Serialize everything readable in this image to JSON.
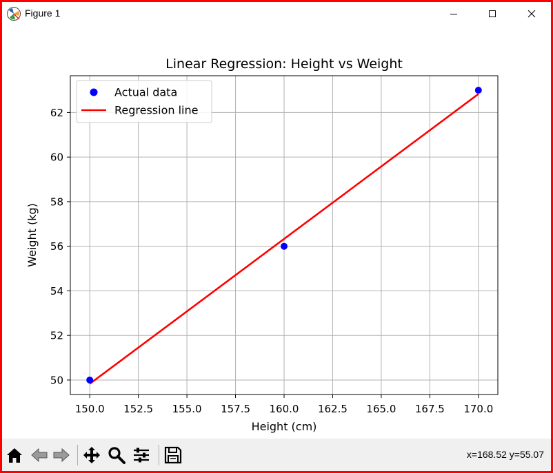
{
  "window": {
    "title": "Figure 1"
  },
  "status": {
    "coords": "x=168.52 y=55.07"
  },
  "toolbar": {
    "items": [
      {
        "icon": "home-icon"
      },
      {
        "icon": "back-arrow-icon"
      },
      {
        "icon": "forward-arrow-icon"
      },
      {
        "icon": "pan-move-icon"
      },
      {
        "icon": "zoom-magnifier-icon"
      },
      {
        "icon": "configure-subplots-icon"
      },
      {
        "icon": "save-disk-icon"
      }
    ]
  },
  "colors": {
    "scatter": "#0000ff",
    "line": "#ff0000",
    "grid": "#b0b0b0",
    "frame": "#ff0000"
  },
  "chart_data": {
    "type": "scatter",
    "title": "Linear Regression: Height vs Weight",
    "xlabel": "Height (cm)",
    "ylabel": "Weight (kg)",
    "xlim": [
      149.0,
      171.0
    ],
    "ylim": [
      49.35,
      63.65
    ],
    "xticks": [
      150.0,
      152.5,
      155.0,
      157.5,
      160.0,
      162.5,
      165.0,
      167.5,
      170.0
    ],
    "xtick_labels": [
      "150.0",
      "152.5",
      "155.0",
      "157.5",
      "160.0",
      "162.5",
      "165.0",
      "167.5",
      "170.0"
    ],
    "yticks": [
      50,
      52,
      54,
      56,
      58,
      60,
      62
    ],
    "ytick_labels": [
      "50",
      "52",
      "54",
      "56",
      "58",
      "60",
      "62"
    ],
    "grid": true,
    "legend_position": "upper-left",
    "series": [
      {
        "name": "Actual data",
        "kind": "scatter",
        "x": [
          150,
          160,
          170
        ],
        "y": [
          50,
          56,
          63
        ]
      },
      {
        "name": "Regression line",
        "kind": "line",
        "x": [
          150,
          170
        ],
        "y": [
          49.83,
          62.83
        ]
      }
    ]
  }
}
